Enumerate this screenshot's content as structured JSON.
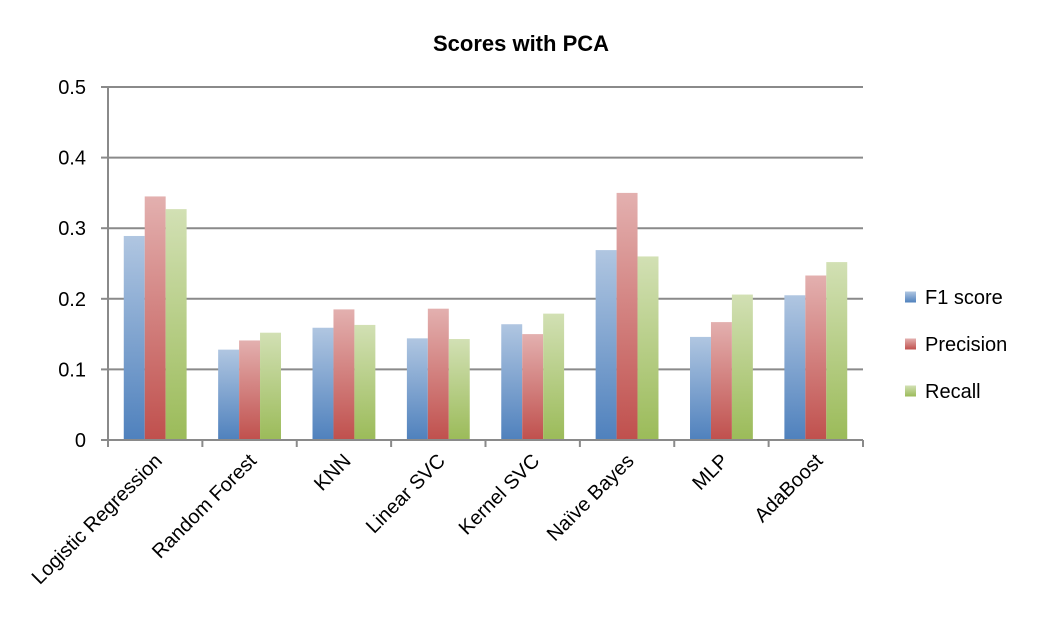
{
  "chart_data": {
    "type": "bar",
    "title": "Scores with PCA",
    "xlabel": "",
    "ylabel": "",
    "ylim": [
      0,
      0.5
    ],
    "yticks": [
      "0",
      "0.1",
      "0.2",
      "0.3",
      "0.4",
      "0.5"
    ],
    "grid": true,
    "legend_position": "right",
    "categories": [
      "Logistic Regression",
      "Random Forest",
      "KNN",
      "Linear SVC",
      "Kernel SVC",
      "Naïve Bayes",
      "MLP",
      "AdaBoost"
    ],
    "series": [
      {
        "name": "F1 score",
        "color": "#4f81bd",
        "values": [
          0.289,
          0.128,
          0.159,
          0.144,
          0.164,
          0.269,
          0.146,
          0.205
        ]
      },
      {
        "name": "Precision",
        "color": "#c0504d",
        "values": [
          0.345,
          0.141,
          0.185,
          0.186,
          0.15,
          0.35,
          0.167,
          0.233
        ]
      },
      {
        "name": "Recall",
        "color": "#9bbb59",
        "values": [
          0.327,
          0.152,
          0.163,
          0.143,
          0.179,
          0.26,
          0.206,
          0.252
        ]
      }
    ]
  }
}
